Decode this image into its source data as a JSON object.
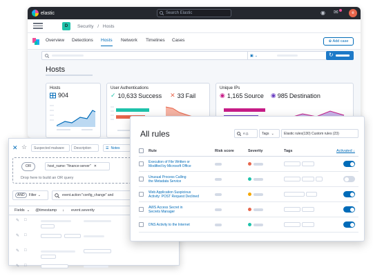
{
  "app": {
    "brand": "elastic",
    "search_placeholder": "Search Elastic",
    "avatar_letter": "e"
  },
  "breadcrumb": {
    "space_letter": "D",
    "items": [
      "Security",
      "/",
      "Hosts"
    ]
  },
  "nav": {
    "tabs": [
      "Overview",
      "Detections",
      "Hosts",
      "Network",
      "Timelines",
      "Cases"
    ],
    "active": "Hosts",
    "add_case": "Add case"
  },
  "page": {
    "title": "Hosts"
  },
  "cards": {
    "hosts": {
      "label": "Hosts",
      "value": "904"
    },
    "auth": {
      "label": "User Authentications",
      "success_value": "10,633",
      "success_label": "Success",
      "fail_value": "33",
      "fail_label": "Fail"
    },
    "ips": {
      "label": "Unique IPs",
      "source_value": "1,165",
      "source_label": "Source",
      "dest_value": "985",
      "dest_label": "Destination"
    }
  },
  "timeline": {
    "tabs": [
      "Suspected malware",
      "Description",
      "Notes"
    ],
    "or_label": "OR",
    "query_chip": "host_name: \"finance-server\"",
    "drop_hint": "Drop here to build an OR query",
    "and_label": "AND",
    "filter_label": "Filter",
    "kql_query": "event.action:\"config_change\" and",
    "columns": [
      "Fields",
      "@timestamp",
      "event.severity"
    ]
  },
  "rules": {
    "title": "All rules",
    "search_placeholder": "e.g.",
    "tags_label": "Tags",
    "filter_label": "Elastic rules(130) Custom rules (23)",
    "columns": {
      "rule": "Rule",
      "risk": "Risk score",
      "severity": "Severity",
      "tags": "Tags",
      "activated": "Activated ↓"
    },
    "rows": [
      {
        "name": [
          "Execution of File Written or",
          "Modified by Microsoft Office"
        ],
        "severity_color": "#e7664c",
        "activated": true
      },
      {
        "name": [
          "Unusual Process Calling",
          "the Metadata Service"
        ],
        "severity_color": "#1ec2ab",
        "activated": false
      },
      {
        "name": [
          "Web Application Suspicious",
          "Activity: POST Request Declined"
        ],
        "severity_color": "#f5a700",
        "activated": true
      },
      {
        "name": [
          "AWS Access Secret in",
          "Secrets Manager"
        ],
        "severity_color": "#e7664c",
        "activated": true
      },
      {
        "name": [
          "DNS Activity to the Internet"
        ],
        "severity_color": "#1ec2ab",
        "activated": true
      }
    ]
  },
  "colors": {
    "accent": "#006bb8",
    "success": "#1ec2ab",
    "danger": "#e7664c",
    "magenta": "#c71c87",
    "purple": "#6b3fc2"
  }
}
